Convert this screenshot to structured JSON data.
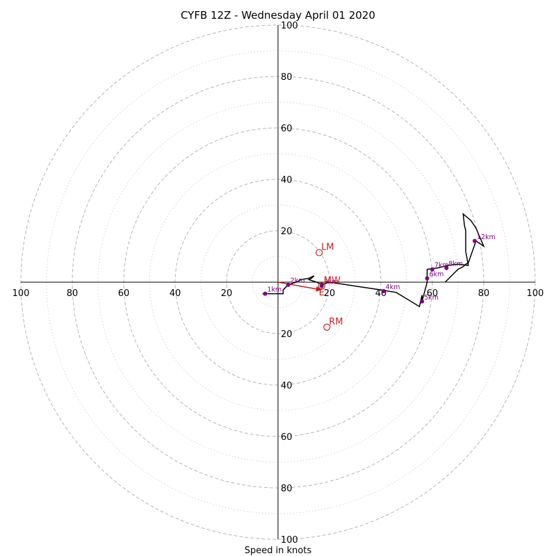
{
  "chart_data": {
    "type": "hodograph",
    "title": "CYFB 12Z - Wednesday April 01 2020",
    "xlabel": "Speed in knots",
    "xlim": [
      -100,
      100
    ],
    "ylim": [
      -100,
      100
    ],
    "ring_major": [
      20,
      40,
      60,
      80,
      100
    ],
    "ring_minor": [
      10,
      30,
      50,
      70,
      90
    ],
    "x_tick_labels": [
      "100",
      "80",
      "60",
      "40",
      "20",
      "20",
      "40",
      "60",
      "80",
      "100"
    ],
    "y_tick_labels": [
      "100",
      "80",
      "60",
      "40",
      "20",
      "20",
      "40",
      "60",
      "80",
      "100"
    ],
    "colors": {
      "trace": "#000000",
      "height_points": "#800080",
      "motion": "#c81e1e",
      "ring_major": "#b4b4b4",
      "ring_minor": "#d2d2d2"
    },
    "trace": [
      [
        -6,
        -4.5
      ],
      [
        2,
        -4.5
      ],
      [
        2,
        -3
      ],
      [
        4,
        -1
      ],
      [
        7,
        0
      ],
      [
        9,
        1
      ],
      [
        12,
        1.5
      ],
      [
        14,
        2.5
      ],
      [
        13,
        1.5
      ],
      [
        12,
        1
      ],
      [
        15,
        0
      ],
      [
        16,
        -0.5
      ],
      [
        18,
        -0.8
      ],
      [
        19,
        -0.3
      ],
      [
        20,
        0
      ],
      [
        30,
        -1.5
      ],
      [
        40,
        -3
      ],
      [
        46,
        -4
      ],
      [
        55,
        -9.5
      ],
      [
        56,
        -5
      ],
      [
        56,
        -7.5
      ],
      [
        58,
        0
      ],
      [
        58,
        5
      ],
      [
        62,
        5.5
      ],
      [
        64,
        6
      ],
      [
        66,
        6.5
      ],
      [
        70,
        7
      ],
      [
        74,
        6.5
      ],
      [
        73,
        12
      ],
      [
        73,
        20
      ],
      [
        72.5,
        22
      ],
      [
        72,
        26.5
      ],
      [
        75,
        24
      ],
      [
        77,
        21
      ],
      [
        80,
        14
      ],
      [
        77,
        16
      ],
      [
        74,
        7.5
      ],
      [
        73,
        7
      ],
      [
        72,
        6
      ],
      [
        70,
        5
      ],
      [
        68,
        3
      ],
      [
        65,
        0
      ]
    ],
    "height_points": [
      {
        "label": "1km",
        "x": -5,
        "y": -4.5
      },
      {
        "label": "2km",
        "x": 4,
        "y": -1
      },
      {
        "label": "3km",
        "x": 17,
        "y": -1.5
      },
      {
        "label": "4km",
        "x": 41,
        "y": -3.5
      },
      {
        "label": "5km",
        "x": 56,
        "y": -7.5
      },
      {
        "label": "6km",
        "x": 58,
        "y": 1.5
      },
      {
        "label": "7km",
        "x": 60,
        "y": 5
      },
      {
        "label": "8km",
        "x": 65.5,
        "y": 5.5
      },
      {
        "label": "12km",
        "x": 76.5,
        "y": 16
      }
    ],
    "storm_motion": [
      {
        "label": "LM",
        "x": 16,
        "y": 11.5
      },
      {
        "label": "RM",
        "x": 19,
        "y": -17.5
      },
      {
        "label": "MW",
        "x": 17,
        "y": -1.5
      }
    ],
    "shear_arrow": {
      "from": [
        0,
        0
      ],
      "to": [
        17,
        -3
      ]
    },
    "annotation_marker": {
      "text": "E",
      "x": 17,
      "y": -3
    }
  }
}
